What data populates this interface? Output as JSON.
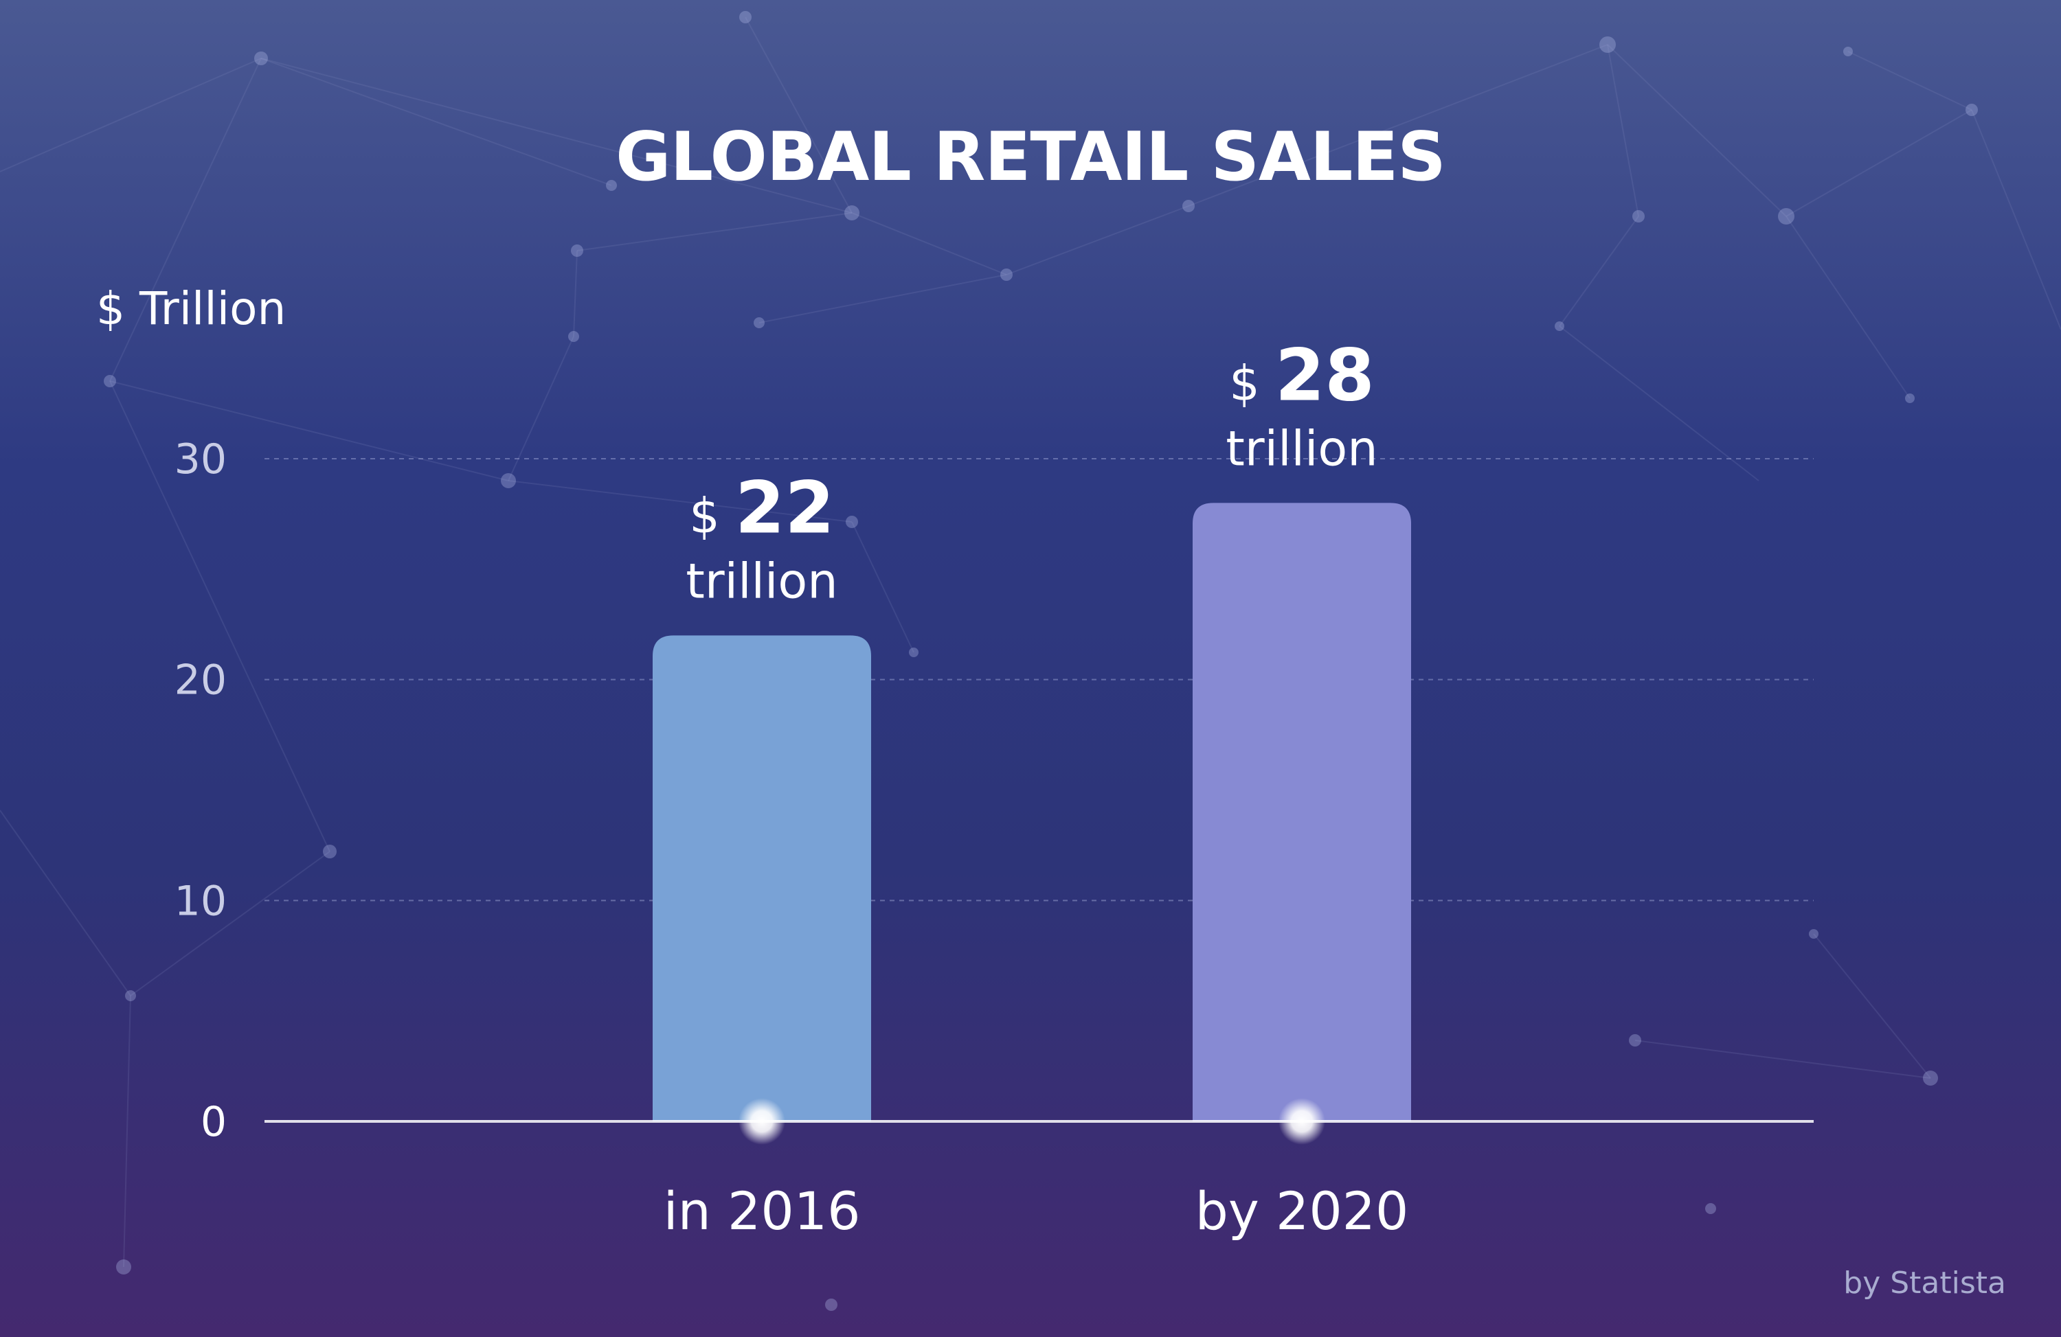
{
  "chart_data": {
    "type": "bar",
    "title": "GLOBAL RETAIL SALES",
    "ylabel": "$ Trillion",
    "xlabel": "",
    "categories": [
      "in 2016",
      "by 2020"
    ],
    "values": [
      22,
      28
    ],
    "ylim": [
      0,
      30
    ],
    "yticks": [
      "0",
      "10",
      "20",
      "30"
    ],
    "data_labels": [
      {
        "currency": "$",
        "number": "22",
        "unit": "trillion"
      },
      {
        "currency": "$",
        "number": "28",
        "unit": "trillion"
      }
    ],
    "grid": true,
    "legend": "none",
    "colors": [
      "#79a2d6",
      "#878ad3"
    ]
  },
  "footer": {
    "source": "by Statista"
  },
  "colors": {
    "background_top": "#4a5993",
    "background_bottom": "#44296f",
    "text": "#ffffff"
  }
}
